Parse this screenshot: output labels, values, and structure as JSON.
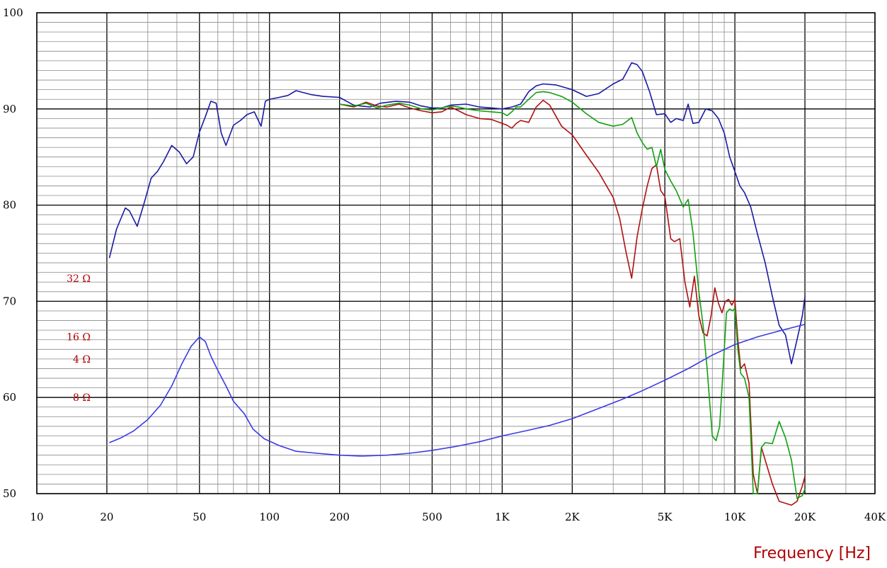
{
  "chart_data": {
    "type": "line",
    "title": "",
    "xlabel": "Frequency  [Hz]",
    "ylabel": "",
    "x_scale": "log",
    "xlim": [
      10,
      40000
    ],
    "ylim": [
      50,
      100
    ],
    "grid": true,
    "legend": "none",
    "x_ticks": [
      {
        "value": 10,
        "label": "10"
      },
      {
        "value": 20,
        "label": "20"
      },
      {
        "value": 50,
        "label": "50"
      },
      {
        "value": 100,
        "label": "100"
      },
      {
        "value": 200,
        "label": "200"
      },
      {
        "value": 500,
        "label": "500"
      },
      {
        "value": 1000,
        "label": "1K"
      },
      {
        "value": 2000,
        "label": "2K"
      },
      {
        "value": 5000,
        "label": "5K"
      },
      {
        "value": 10000,
        "label": "10K"
      },
      {
        "value": 20000,
        "label": "20K"
      },
      {
        "value": 40000,
        "label": "40K"
      }
    ],
    "y_ticks": [
      {
        "value": 50,
        "label": "50"
      },
      {
        "value": 60,
        "label": "60"
      },
      {
        "value": 70,
        "label": "70"
      },
      {
        "value": 80,
        "label": "80"
      },
      {
        "value": 90,
        "label": "90"
      },
      {
        "value": 100,
        "label": "100"
      }
    ],
    "impedance_ticks": [
      {
        "value": 64.0,
        "label": "4 Ω"
      },
      {
        "value": 60.0,
        "label": "8 Ω"
      },
      {
        "value": 66.3,
        "label": "16 Ω"
      },
      {
        "value": 72.4,
        "label": "32 Ω"
      }
    ],
    "series": [
      {
        "color": "#1a1aa6",
        "x": [
          20.5,
          22,
          24,
          25,
          27,
          29,
          31,
          33,
          35,
          38,
          41,
          44,
          47,
          50,
          53,
          56,
          59,
          62,
          65,
          70,
          75,
          80,
          86,
          92,
          96,
          100,
          110,
          120,
          130,
          150,
          170,
          200,
          230,
          270,
          300,
          350,
          400,
          450,
          500,
          550,
          600,
          700,
          800,
          900,
          1000,
          1100,
          1200,
          1300,
          1400,
          1500,
          1700,
          2000,
          2300,
          2600,
          3000,
          3300,
          3600,
          3800,
          4000,
          4300,
          4600,
          5000,
          5300,
          5600,
          6000,
          6300,
          6600,
          7000,
          7500,
          8000,
          8500,
          9000,
          9500,
          10000,
          10500,
          11000,
          11700,
          12500,
          13500,
          14500,
          15500,
          16500,
          17500,
          18500,
          19500,
          20000
        ],
        "values": [
          74.5,
          77.5,
          79.7,
          79.4,
          77.8,
          80.3,
          82.8,
          83.5,
          84.5,
          86.2,
          85.5,
          84.3,
          85.0,
          87.6,
          89.2,
          90.8,
          90.6,
          87.5,
          86.2,
          88.3,
          88.8,
          89.4,
          89.7,
          88.2,
          90.8,
          91.0,
          91.2,
          91.4,
          91.9,
          91.5,
          91.3,
          91.2,
          90.4,
          90.2,
          90.6,
          90.8,
          90.7,
          90.3,
          90.1,
          90.1,
          90.4,
          90.5,
          90.2,
          90.1,
          90.0,
          90.2,
          90.5,
          91.8,
          92.4,
          92.6,
          92.5,
          92.0,
          91.3,
          91.6,
          92.6,
          93.1,
          94.8,
          94.6,
          93.9,
          91.8,
          89.4,
          89.5,
          88.6,
          89.0,
          88.8,
          90.5,
          88.5,
          88.6,
          90.0,
          89.8,
          89.0,
          87.5,
          85.0,
          83.5,
          82.0,
          81.3,
          79.8,
          77.0,
          74.0,
          70.5,
          67.5,
          66.5,
          63.5,
          66.0,
          68.5,
          70.5
        ]
      },
      {
        "color": "#b01010",
        "x": [
          200,
          230,
          260,
          290,
          320,
          360,
          400,
          450,
          500,
          550,
          600,
          650,
          700,
          800,
          900,
          1000,
          1050,
          1100,
          1150,
          1200,
          1300,
          1400,
          1500,
          1600,
          1800,
          2000,
          2300,
          2600,
          3000,
          3200,
          3400,
          3600,
          3800,
          4000,
          4200,
          4400,
          4600,
          4800,
          5000,
          5300,
          5500,
          5800,
          6100,
          6400,
          6700,
          7000,
          7300,
          7600,
          7900,
          8200,
          8500,
          8800,
          9100,
          9400,
          9700,
          10000,
          10300,
          10600,
          11000,
          11500,
          12000,
          12500,
          13000,
          13500,
          14500,
          15500,
          16500,
          17500,
          18500,
          19500,
          20000
        ],
        "values": [
          90.5,
          90.2,
          90.7,
          90.3,
          90.2,
          90.5,
          90.1,
          89.8,
          89.6,
          89.7,
          90.2,
          89.8,
          89.4,
          89.0,
          88.9,
          88.5,
          88.3,
          88.0,
          88.5,
          88.8,
          88.6,
          90.2,
          90.9,
          90.4,
          88.2,
          87.3,
          85.2,
          83.4,
          80.8,
          78.6,
          75.2,
          72.4,
          76.7,
          79.6,
          82.0,
          83.8,
          84.2,
          81.5,
          80.9,
          76.5,
          76.2,
          76.5,
          72.0,
          69.4,
          72.6,
          68.5,
          66.7,
          66.4,
          68.5,
          71.4,
          69.8,
          68.8,
          70.0,
          70.2,
          69.6,
          70.2,
          66.0,
          63.0,
          63.5,
          61.5,
          52.0,
          50.0,
          54.8,
          53.5,
          51.0,
          49.2,
          49.0,
          48.8,
          49.2,
          50.8,
          51.8
        ]
      },
      {
        "color": "#10a010",
        "x": [
          200,
          230,
          260,
          290,
          320,
          360,
          400,
          450,
          500,
          550,
          600,
          650,
          700,
          800,
          900,
          1000,
          1050,
          1100,
          1150,
          1200,
          1300,
          1400,
          1500,
          1600,
          1800,
          2000,
          2300,
          2600,
          3000,
          3300,
          3600,
          3800,
          4000,
          4200,
          4400,
          4600,
          4800,
          5000,
          5300,
          5600,
          6000,
          6300,
          6600,
          7000,
          7300,
          7600,
          8000,
          8300,
          8600,
          8900,
          9200,
          9500,
          9800,
          10000,
          10300,
          10600,
          11000,
          11500,
          12000,
          12500,
          13000,
          13500,
          14500,
          15500,
          16500,
          17500,
          18500,
          19500,
          20000
        ],
        "values": [
          90.5,
          90.3,
          90.6,
          90.1,
          90.4,
          90.6,
          90.4,
          90.0,
          89.9,
          90.1,
          90.3,
          90.2,
          90.0,
          89.8,
          89.7,
          89.6,
          89.3,
          89.7,
          90.2,
          90.2,
          91.0,
          91.7,
          91.8,
          91.7,
          91.3,
          90.7,
          89.5,
          88.6,
          88.2,
          88.4,
          89.1,
          87.5,
          86.5,
          85.8,
          86.0,
          84.0,
          85.8,
          83.7,
          82.5,
          81.5,
          79.8,
          80.6,
          77.2,
          71.0,
          67.5,
          63.0,
          56.0,
          55.5,
          57.0,
          63.0,
          68.8,
          69.2,
          69.0,
          69.3,
          65.0,
          62.5,
          62.0,
          60.0,
          50.0,
          50.0,
          54.8,
          55.3,
          55.2,
          57.5,
          55.8,
          53.5,
          49.5,
          49.8,
          50.5
        ]
      },
      {
        "color": "#3a3ae6",
        "x": [
          20.5,
          23,
          26,
          30,
          34,
          38,
          42,
          46,
          50,
          53,
          56,
          60,
          65,
          70,
          78,
          85,
          95,
          110,
          130,
          160,
          200,
          250,
          320,
          400,
          500,
          630,
          800,
          1000,
          1300,
          1600,
          2000,
          2500,
          3200,
          4000,
          5000,
          6300,
          8000,
          10000,
          12500,
          16000,
          20000
        ],
        "values": [
          55.3,
          55.8,
          56.5,
          57.7,
          59.2,
          61.2,
          63.5,
          65.3,
          66.3,
          65.8,
          64.3,
          62.8,
          61.2,
          59.6,
          58.3,
          56.7,
          55.7,
          55.0,
          54.4,
          54.2,
          54.0,
          53.9,
          54.0,
          54.2,
          54.5,
          54.9,
          55.4,
          56.0,
          56.6,
          57.1,
          57.8,
          58.7,
          59.7,
          60.7,
          61.8,
          63.0,
          64.4,
          65.5,
          66.3,
          67.0,
          67.6
        ]
      }
    ]
  }
}
